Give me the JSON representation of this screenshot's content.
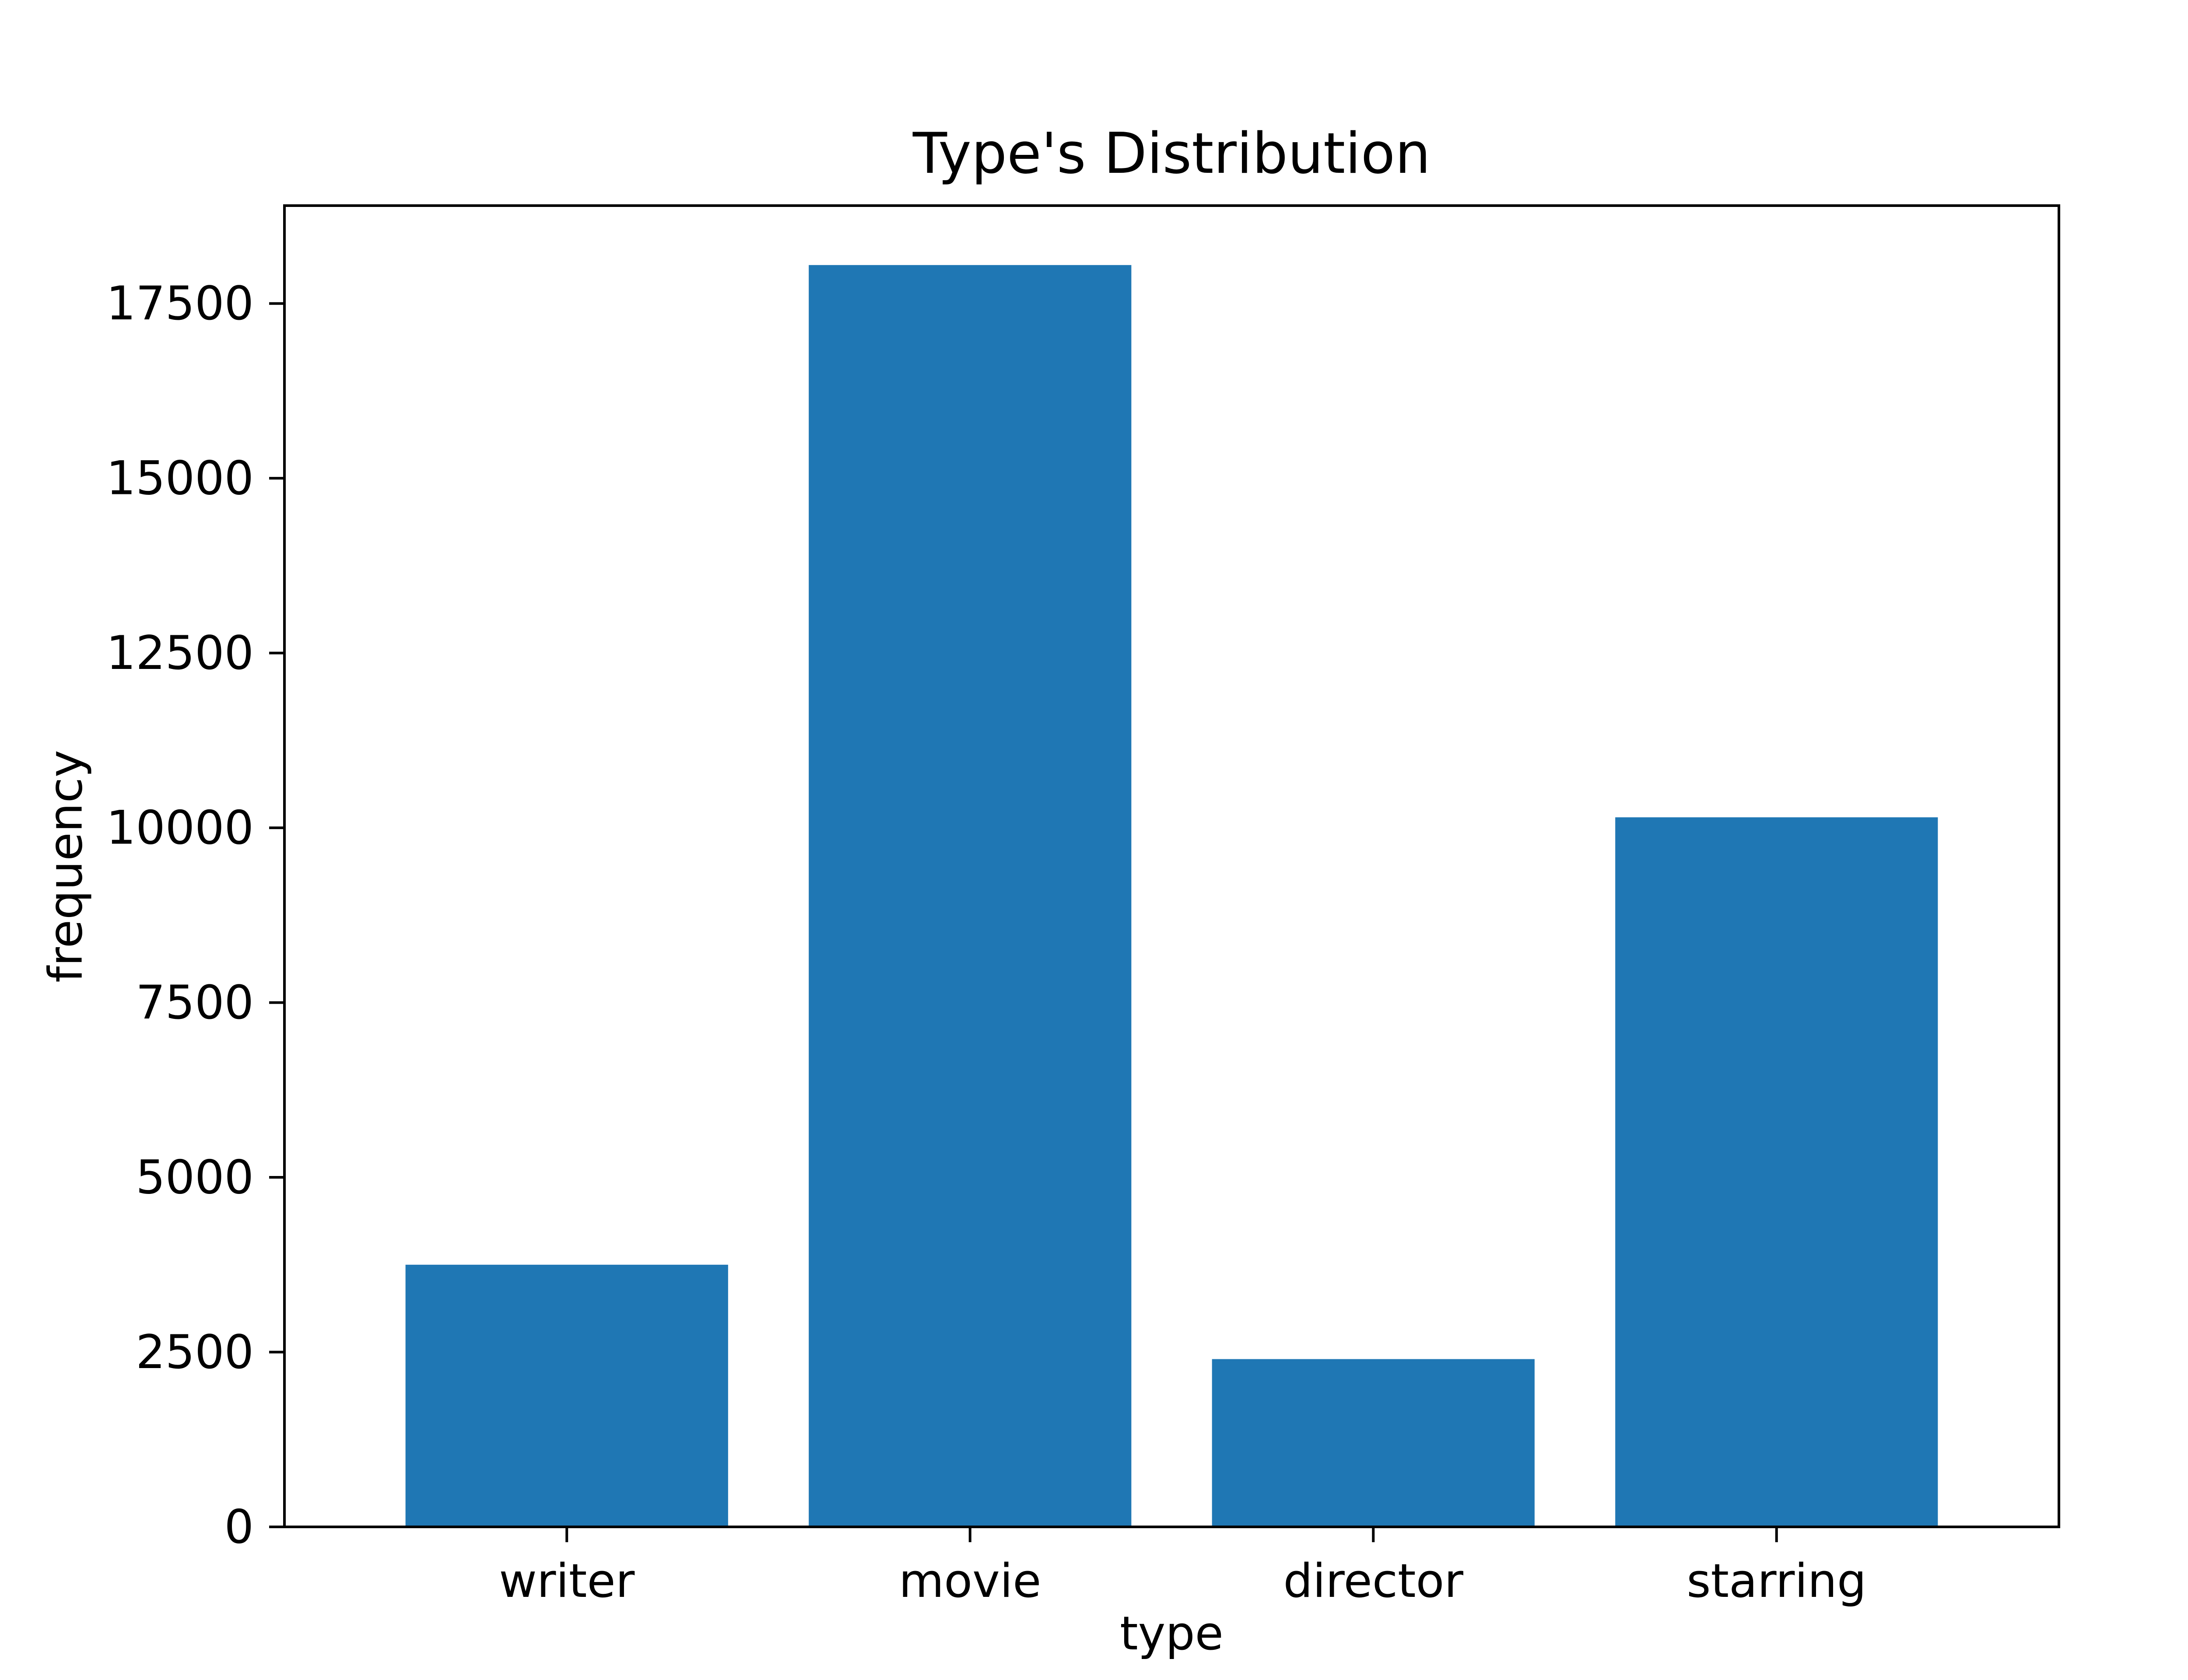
{
  "chart_data": {
    "type": "bar",
    "title": "Type's Distribution",
    "xlabel": "type",
    "ylabel": "frequency",
    "categories": [
      "writer",
      "movie",
      "director",
      "starring"
    ],
    "values": [
      3750,
      18050,
      2400,
      10150
    ],
    "ylim": [
      0,
      18900
    ],
    "yticks": [
      0,
      2500,
      5000,
      7500,
      10000,
      12500,
      15000,
      17500
    ],
    "ytick_labels": [
      "0",
      "2500",
      "5000",
      "7500",
      "10000",
      "12500",
      "15000",
      "17500"
    ],
    "grid": false,
    "bar_color": "#1f77b4"
  }
}
